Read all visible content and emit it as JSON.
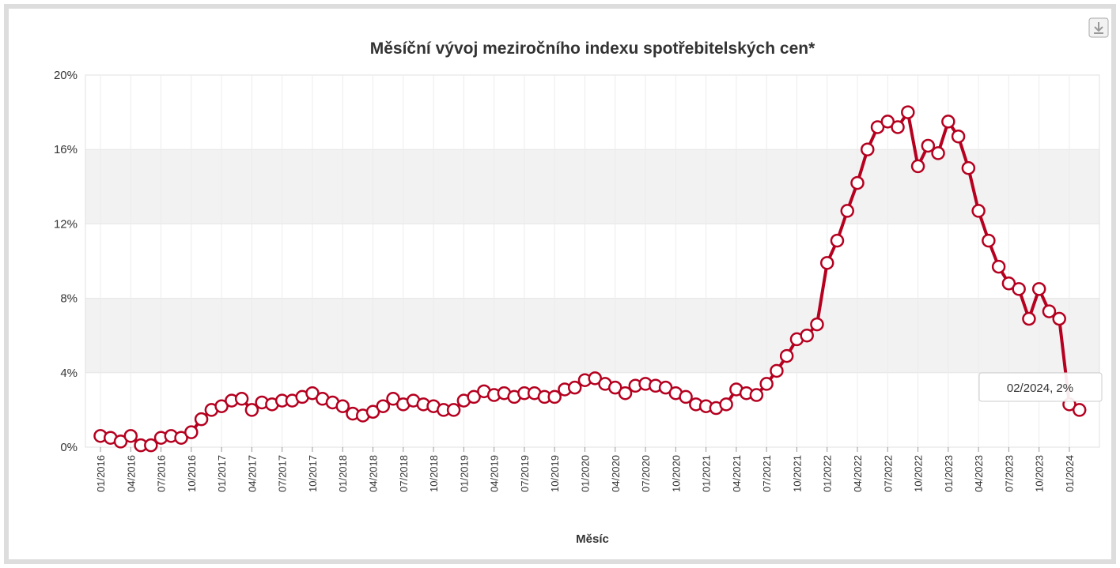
{
  "chart_data": {
    "type": "line",
    "title": "Měsíční vývoj meziročního indexu spotřebitelských cen*",
    "x_label": "Měsíc",
    "tooltip": "02/2024, 2%",
    "categories": [
      "01/2016",
      null,
      null,
      "04/2016",
      null,
      null,
      "07/2016",
      null,
      null,
      "10/2016",
      null,
      null,
      "01/2017",
      null,
      null,
      "04/2017",
      null,
      null,
      "07/2017",
      null,
      null,
      "10/2017",
      null,
      null,
      "01/2018",
      null,
      null,
      "04/2018",
      null,
      null,
      "07/2018",
      null,
      null,
      "10/2018",
      null,
      null,
      "01/2019",
      null,
      null,
      "04/2019",
      null,
      null,
      "07/2019",
      null,
      null,
      "10/2019",
      null,
      null,
      "01/2020",
      null,
      null,
      "04/2020",
      null,
      null,
      "07/2020",
      null,
      null,
      "10/2020",
      null,
      null,
      "01/2021",
      null,
      null,
      "04/2021",
      null,
      null,
      "07/2021",
      null,
      null,
      "10/2021",
      null,
      null,
      "01/2022",
      null,
      null,
      "04/2022",
      null,
      null,
      "07/2022",
      null,
      null,
      "10/2022",
      null,
      null,
      "01/2023",
      null,
      null,
      "04/2023",
      null,
      null,
      "07/2023",
      null,
      null,
      "10/2023",
      null,
      null,
      "01/2024",
      null
    ],
    "series": [
      {
        "color": "#b5001f",
        "values": [
          0.6,
          0.5,
          0.3,
          0.6,
          0.1,
          0.1,
          0.5,
          0.6,
          0.5,
          0.8,
          1.5,
          2.0,
          2.2,
          2.5,
          2.6,
          2.0,
          2.4,
          2.3,
          2.5,
          2.5,
          2.7,
          2.9,
          2.6,
          2.4,
          2.2,
          1.8,
          1.7,
          1.9,
          2.2,
          2.6,
          2.3,
          2.5,
          2.3,
          2.2,
          2.0,
          2.0,
          2.5,
          2.7,
          3.0,
          2.8,
          2.9,
          2.7,
          2.9,
          2.9,
          2.7,
          2.7,
          3.1,
          3.2,
          3.6,
          3.7,
          3.4,
          3.2,
          2.9,
          3.3,
          3.4,
          3.3,
          3.2,
          2.9,
          2.7,
          2.3,
          2.2,
          2.1,
          2.3,
          3.1,
          2.9,
          2.8,
          3.4,
          4.1,
          4.9,
          5.8,
          6.0,
          6.6,
          9.9,
          11.1,
          12.7,
          14.2,
          16.0,
          17.2,
          17.5,
          17.2,
          18.0,
          15.1,
          16.2,
          15.8,
          17.5,
          16.7,
          15.0,
          12.7,
          11.1,
          9.7,
          8.8,
          8.5,
          6.9,
          8.5,
          7.3,
          6.9,
          2.3,
          2.0
        ]
      }
    ],
    "ylim": [
      0,
      20
    ],
    "yticks": [
      {
        "value": 0,
        "label": "0%"
      },
      {
        "value": 4,
        "label": "4%"
      },
      {
        "value": 8,
        "label": "8%"
      },
      {
        "value": 12,
        "label": "12%"
      },
      {
        "value": 16,
        "label": "16%"
      },
      {
        "value": 20,
        "label": "20%"
      }
    ],
    "banded_grid": true,
    "grid": true
  }
}
